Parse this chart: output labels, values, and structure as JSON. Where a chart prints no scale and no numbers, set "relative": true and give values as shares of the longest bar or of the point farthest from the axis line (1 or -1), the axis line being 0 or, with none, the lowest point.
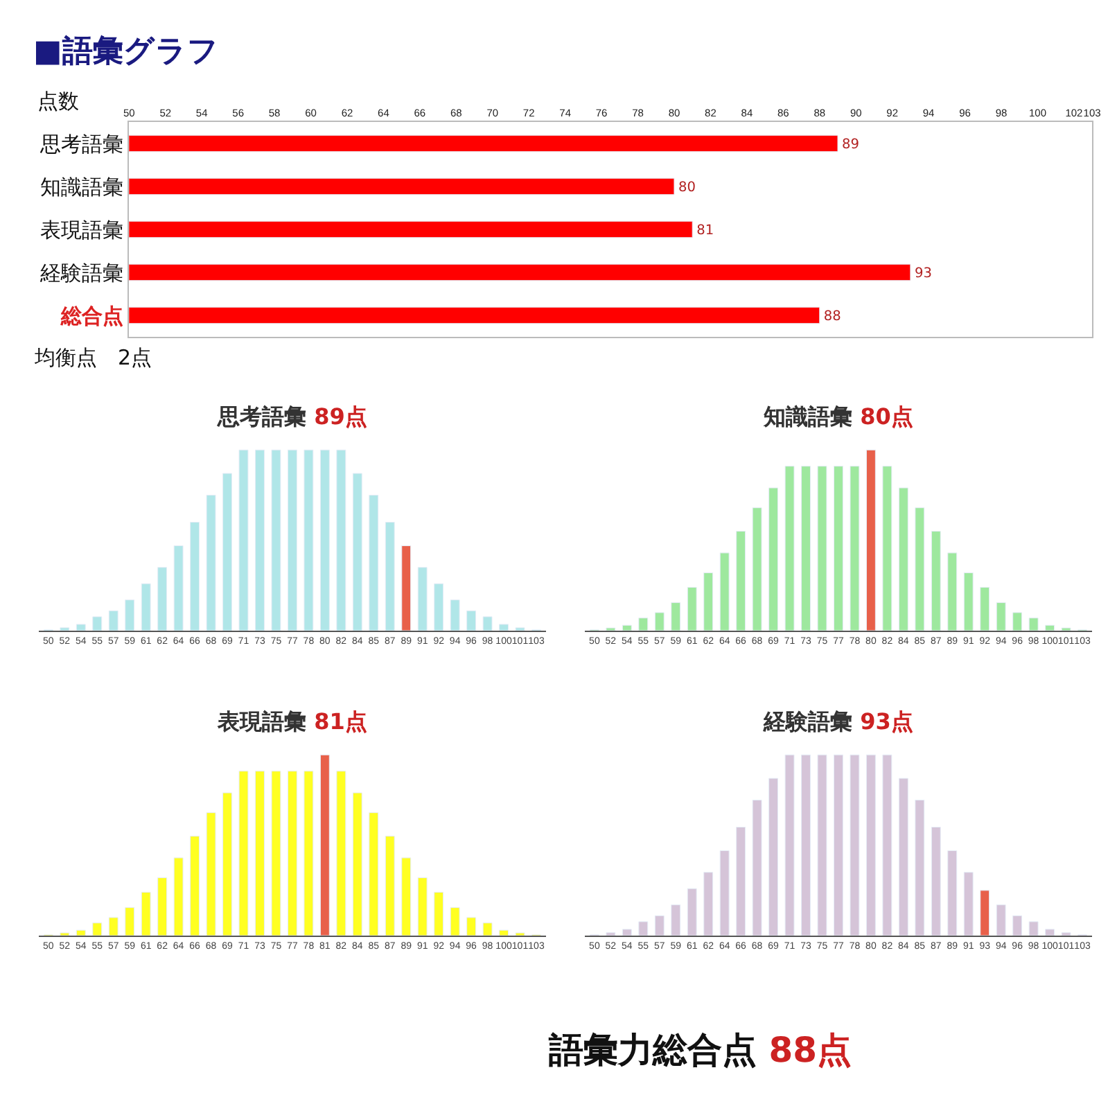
{
  "chart_data": [
    {
      "type": "bar",
      "orientation": "horizontal",
      "title": "■語彙グラフ",
      "ylabel": "点数",
      "categories": [
        "思考語彙",
        "知識語彙",
        "表現語彙",
        "経験語彙",
        "総合点"
      ],
      "values": [
        89,
        80,
        81,
        93,
        88
      ],
      "color": "#ff0000",
      "data_labels": true,
      "xlim": [
        50,
        103
      ],
      "xticks": [
        50,
        52,
        54,
        56,
        58,
        60,
        62,
        64,
        66,
        68,
        70,
        72,
        74,
        76,
        78,
        80,
        82,
        84,
        86,
        88,
        90,
        92,
        94,
        96,
        98,
        100,
        102,
        103
      ],
      "annotations": [
        "均衡点　2点"
      ],
      "legend": false
    },
    {
      "type": "bar",
      "relative": true,
      "title": "思考語彙 89点",
      "categories": [
        "50",
        "52",
        "54",
        "55",
        "57",
        "59",
        "61",
        "62",
        "64",
        "66",
        "68",
        "69",
        "71",
        "73",
        "75",
        "77",
        "78",
        "80",
        "82",
        "84",
        "85",
        "87",
        "89",
        "91",
        "92",
        "94",
        "96",
        "98",
        "100",
        "101",
        "103"
      ],
      "values": [
        0.005,
        0.016,
        0.035,
        0.077,
        0.11,
        0.17,
        0.26,
        0.35,
        0.47,
        0.6,
        0.75,
        0.87,
        1,
        1,
        1,
        1,
        1,
        1,
        1,
        0.87,
        0.75,
        0.6,
        0.47,
        0.35,
        0.26,
        0.17,
        0.11,
        0.077,
        0.035,
        0.016,
        0.005
      ],
      "colors": [
        "#b0e6e8",
        "#b0e6e8",
        "#b0e6e8",
        "#b0e6e8",
        "#b0e6e8",
        "#b0e6e8",
        "#b0e6e8",
        "#b0e6e8",
        "#b0e6e8",
        "#b0e6e8",
        "#b0e6e8",
        "#b0e6e8",
        "#b0e6e8",
        "#b0e6e8",
        "#b0e6e8",
        "#b0e6e8",
        "#b0e6e8",
        "#b0e6e8",
        "#b0e6e8",
        "#b0e6e8",
        "#b0e6e8",
        "#b0e6e8",
        "#e8604a",
        "#b0e6e8",
        "#b0e6e8",
        "#b0e6e8",
        "#b0e6e8",
        "#b0e6e8",
        "#b0e6e8",
        "#b0e6e8",
        "#b0e6e8"
      ]
    },
    {
      "type": "bar",
      "relative": true,
      "title": "知識語彙 80点",
      "categories": [
        "50",
        "52",
        "54",
        "55",
        "57",
        "59",
        "61",
        "62",
        "64",
        "66",
        "68",
        "69",
        "71",
        "73",
        "75",
        "77",
        "78",
        "80",
        "82",
        "84",
        "85",
        "87",
        "89",
        "91",
        "92",
        "94",
        "96",
        "98",
        "100",
        "101",
        "103"
      ],
      "values": [
        0.005,
        0.015,
        0.03,
        0.07,
        0.1,
        0.155,
        0.24,
        0.32,
        0.43,
        0.55,
        0.68,
        0.79,
        0.91,
        0.91,
        0.91,
        0.91,
        0.91,
        1,
        0.91,
        0.79,
        0.68,
        0.55,
        0.43,
        0.32,
        0.24,
        0.155,
        0.1,
        0.07,
        0.03,
        0.015,
        0.005
      ],
      "colors": [
        "#9ee89e",
        "#9ee89e",
        "#9ee89e",
        "#9ee89e",
        "#9ee89e",
        "#9ee89e",
        "#9ee89e",
        "#9ee89e",
        "#9ee89e",
        "#9ee89e",
        "#9ee89e",
        "#9ee89e",
        "#9ee89e",
        "#9ee89e",
        "#9ee89e",
        "#9ee89e",
        "#9ee89e",
        "#e8604a",
        "#9ee89e",
        "#9ee89e",
        "#9ee89e",
        "#9ee89e",
        "#9ee89e",
        "#9ee89e",
        "#9ee89e",
        "#9ee89e",
        "#9ee89e",
        "#9ee89e",
        "#9ee89e",
        "#9ee89e",
        "#9ee89e"
      ]
    },
    {
      "type": "bar",
      "relative": true,
      "title": "表現語彙 81点",
      "categories": [
        "50",
        "52",
        "54",
        "55",
        "57",
        "59",
        "61",
        "62",
        "64",
        "66",
        "68",
        "69",
        "71",
        "73",
        "75",
        "77",
        "78",
        "81",
        "82",
        "84",
        "85",
        "87",
        "89",
        "91",
        "92",
        "94",
        "96",
        "98",
        "100",
        "101",
        "103"
      ],
      "values": [
        0.005,
        0.015,
        0.03,
        0.07,
        0.1,
        0.155,
        0.24,
        0.32,
        0.43,
        0.55,
        0.68,
        0.79,
        0.91,
        0.91,
        0.91,
        0.91,
        0.91,
        1,
        0.91,
        0.79,
        0.68,
        0.55,
        0.43,
        0.32,
        0.24,
        0.155,
        0.1,
        0.07,
        0.03,
        0.015,
        0.005
      ],
      "colors": [
        "#ffff22",
        "#ffff22",
        "#ffff22",
        "#ffff22",
        "#ffff22",
        "#ffff22",
        "#ffff22",
        "#ffff22",
        "#ffff22",
        "#ffff22",
        "#ffff22",
        "#ffff22",
        "#ffff22",
        "#ffff22",
        "#ffff22",
        "#ffff22",
        "#ffff22",
        "#e8604a",
        "#ffff22",
        "#ffff22",
        "#ffff22",
        "#ffff22",
        "#ffff22",
        "#ffff22",
        "#ffff22",
        "#ffff22",
        "#ffff22",
        "#ffff22",
        "#ffff22",
        "#ffff22",
        "#ffff22"
      ]
    },
    {
      "type": "bar",
      "relative": true,
      "title": "経験語彙 93点",
      "categories": [
        "50",
        "52",
        "54",
        "55",
        "57",
        "59",
        "61",
        "62",
        "64",
        "66",
        "68",
        "69",
        "71",
        "73",
        "75",
        "77",
        "78",
        "80",
        "82",
        "84",
        "85",
        "87",
        "89",
        "91",
        "93",
        "94",
        "96",
        "98",
        "100",
        "101",
        "103"
      ],
      "values": [
        0.005,
        0.016,
        0.035,
        0.077,
        0.11,
        0.17,
        0.26,
        0.35,
        0.47,
        0.6,
        0.75,
        0.87,
        1,
        1,
        1,
        1,
        1,
        1,
        1,
        0.87,
        0.75,
        0.6,
        0.47,
        0.35,
        0.25,
        0.17,
        0.11,
        0.077,
        0.035,
        0.016,
        0.005
      ],
      "colors": [
        "#d5c4d8",
        "#d5c4d8",
        "#d5c4d8",
        "#d5c4d8",
        "#d5c4d8",
        "#d5c4d8",
        "#d5c4d8",
        "#d5c4d8",
        "#d5c4d8",
        "#d5c4d8",
        "#d5c4d8",
        "#d5c4d8",
        "#d5c4d8",
        "#d5c4d8",
        "#d5c4d8",
        "#d5c4d8",
        "#d5c4d8",
        "#d5c4d8",
        "#d5c4d8",
        "#d5c4d8",
        "#d5c4d8",
        "#d5c4d8",
        "#d5c4d8",
        "#d5c4d8",
        "#e8604a",
        "#d5c4d8",
        "#d5c4d8",
        "#d5c4d8",
        "#d5c4d8",
        "#d5c4d8",
        "#d5c4d8"
      ]
    },
    {
      "type": "other",
      "title": "語彙力総合点 88点"
    }
  ]
}
